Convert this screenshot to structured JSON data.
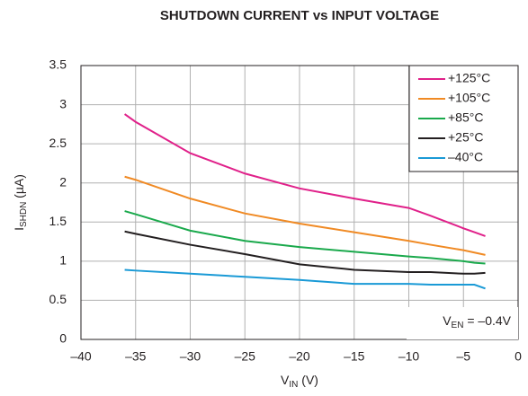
{
  "chart_data": {
    "type": "line",
    "title": "SHUTDOWN CURRENT vs INPUT VOLTAGE",
    "xlabel": [
      "V",
      "IN",
      " (V)"
    ],
    "ylabel": [
      "I",
      "SHDN",
      " (µA)"
    ],
    "annotation": [
      "V",
      "EN",
      " = –0.4V"
    ],
    "x": [
      -36,
      -35,
      -30,
      -25,
      -20,
      -15,
      -10,
      -8,
      -5,
      -4,
      -3
    ],
    "series": [
      {
        "name": "+125°C",
        "color": "#e0218a",
        "values": [
          2.88,
          2.78,
          2.38,
          2.12,
          1.93,
          1.8,
          1.68,
          1.58,
          1.42,
          1.37,
          1.32
        ]
      },
      {
        "name": "+105°C",
        "color": "#f08a24",
        "values": [
          2.08,
          2.04,
          1.8,
          1.61,
          1.48,
          1.37,
          1.26,
          1.21,
          1.14,
          1.11,
          1.08
        ]
      },
      {
        "name": "+85°C",
        "color": "#1aa94c",
        "values": [
          1.64,
          1.6,
          1.39,
          1.26,
          1.18,
          1.12,
          1.06,
          1.04,
          1.0,
          0.98,
          0.97
        ]
      },
      {
        "name": "+25°C",
        "color": "#231f20",
        "values": [
          1.38,
          1.35,
          1.21,
          1.09,
          0.96,
          0.89,
          0.86,
          0.86,
          0.84,
          0.84,
          0.85
        ]
      },
      {
        "name": "–40°C",
        "color": "#1a9ad6",
        "values": [
          0.89,
          0.88,
          0.84,
          0.8,
          0.76,
          0.71,
          0.71,
          0.7,
          0.7,
          0.7,
          0.65
        ]
      }
    ],
    "xlim": [
      -40,
      0
    ],
    "ylim": [
      0,
      3.5
    ],
    "xticks": [
      {
        "value": -40,
        "label": "–40"
      },
      {
        "value": -35,
        "label": "–35"
      },
      {
        "value": -30,
        "label": "–30"
      },
      {
        "value": -25,
        "label": "–25"
      },
      {
        "value": -20,
        "label": "–20"
      },
      {
        "value": -15,
        "label": "–15"
      },
      {
        "value": -10,
        "label": "–10"
      },
      {
        "value": -5,
        "label": "–5"
      },
      0
    ],
    "yticks": [
      0,
      0.5,
      1,
      1.5,
      2,
      2.5,
      3,
      3.5
    ],
    "grid": true,
    "legend": "upper-right"
  }
}
